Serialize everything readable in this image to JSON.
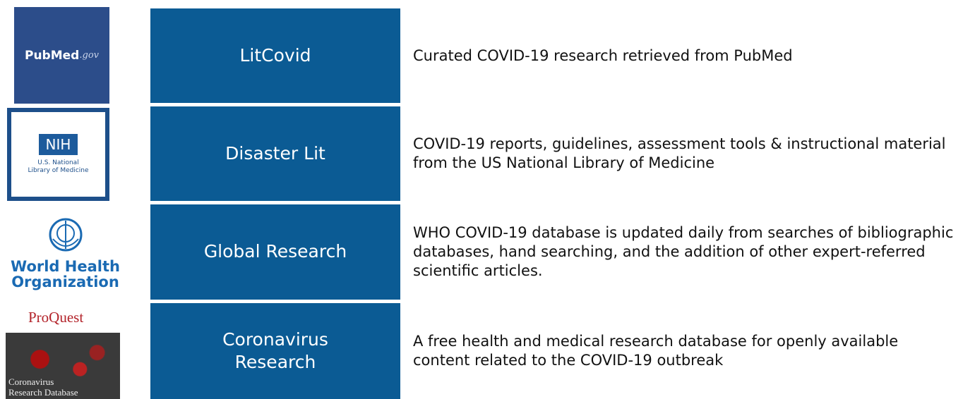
{
  "rows": [
    {
      "logo": {
        "text": "PubMed",
        "suffix": ".gov"
      },
      "name": "LitCovid",
      "description": "Curated COVID-19 research retrieved from PubMed"
    },
    {
      "logo": {
        "text": "NIH",
        "suffix": "U.S. National Library of Medicine"
      },
      "name": "Disaster Lit",
      "description": "COVID-19 reports, guidelines, assessment tools & instructional material from the US National Library of Medicine"
    },
    {
      "logo": {
        "text": "World Health Organization"
      },
      "name": "Global Research",
      "description": "WHO COVID-19 database is updated daily from searches of bibliographic databases, hand searching, and the addition of other expert-referred scientific articles."
    },
    {
      "logo": {
        "text": "ProQuest",
        "suffix": "Coronavirus Research Database"
      },
      "name": "Coronavirus Research",
      "description": "A free health and medical research database for openly available content related to the COVID-19 outbreak"
    }
  ]
}
